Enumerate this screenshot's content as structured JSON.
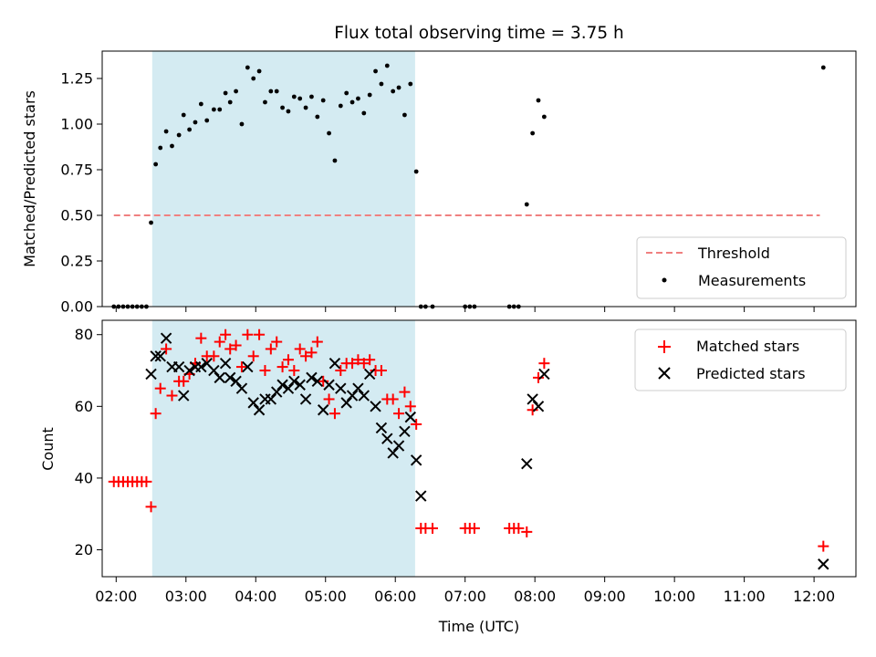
{
  "figure": {
    "background": "#ffffff"
  },
  "chart_data": [
    {
      "type": "scatter",
      "title": "Flux total observing time = 3.75 h",
      "xlabel": "",
      "ylabel": "Matched/Predicted stars",
      "xlim": [
        "01:48",
        "12:36"
      ],
      "ylim": [
        0,
        1.4
      ],
      "yticks": [
        0.0,
        0.25,
        0.5,
        0.75,
        1.0,
        1.25
      ],
      "ytick_labels": [
        "0.00",
        "0.25",
        "0.50",
        "0.75",
        "1.00",
        "1.25"
      ],
      "shaded_span": {
        "x": [
          "02:31",
          "06:17"
        ],
        "color": "#d4ebf2"
      },
      "legend": {
        "placement": "lower-right",
        "entries": [
          "Threshold",
          "Measurements"
        ]
      },
      "series": [
        {
          "name": "Threshold",
          "kind": "dashed-line",
          "color": "#f08080",
          "x": [
            "01:58",
            "12:05"
          ],
          "y": [
            0.5,
            0.5
          ]
        },
        {
          "name": "Measurements",
          "kind": "points",
          "color": "#000000",
          "x": [
            "01:58",
            "02:02",
            "02:06",
            "02:10",
            "02:14",
            "02:18",
            "02:22",
            "02:26",
            "02:30",
            "02:34",
            "02:38",
            "02:43",
            "02:48",
            "02:54",
            "02:58",
            "03:03",
            "03:08",
            "03:13",
            "03:18",
            "03:24",
            "03:29",
            "03:34",
            "03:38",
            "03:43",
            "03:48",
            "03:53",
            "03:58",
            "04:03",
            "04:08",
            "04:13",
            "04:18",
            "04:23",
            "04:28",
            "04:33",
            "04:38",
            "04:43",
            "04:48",
            "04:53",
            "04:58",
            "05:03",
            "05:08",
            "05:13",
            "05:18",
            "05:23",
            "05:28",
            "05:33",
            "05:38",
            "05:43",
            "05:48",
            "05:53",
            "05:58",
            "06:03",
            "06:08",
            "06:13",
            "06:18",
            "06:22",
            "06:26",
            "06:32",
            "07:00",
            "07:04",
            "07:08",
            "07:38",
            "07:42",
            "07:46",
            "07:53",
            "07:58",
            "08:03",
            "08:08",
            "12:08"
          ],
          "y": [
            0,
            0,
            0,
            0,
            0,
            0,
            0,
            0,
            0.46,
            0.78,
            0.87,
            0.96,
            0.88,
            0.94,
            1.05,
            0.97,
            1.01,
            1.11,
            1.02,
            1.08,
            1.08,
            1.17,
            1.12,
            1.18,
            1.0,
            1.31,
            1.25,
            1.29,
            1.12,
            1.18,
            1.18,
            1.09,
            1.07,
            1.15,
            1.14,
            1.09,
            1.15,
            1.04,
            1.13,
            0.95,
            0.8,
            1.1,
            1.17,
            1.12,
            1.14,
            1.06,
            1.16,
            1.29,
            1.22,
            1.32,
            1.18,
            1.2,
            1.05,
            1.22,
            0.74,
            0,
            0,
            0,
            0,
            0,
            0,
            0,
            0,
            0,
            0.56,
            0.95,
            1.13,
            1.04,
            1.31
          ]
        }
      ]
    },
    {
      "type": "scatter",
      "title": "",
      "xlabel": "Time (UTC)",
      "ylabel": "Count",
      "xlim": [
        "01:48",
        "12:36"
      ],
      "ylim": [
        12.5,
        84
      ],
      "yticks": [
        20,
        40,
        60,
        80
      ],
      "ytick_labels": [
        "20",
        "40",
        "60",
        "80"
      ],
      "xticks": [
        "02:00",
        "03:00",
        "04:00",
        "05:00",
        "06:00",
        "07:00",
        "08:00",
        "09:00",
        "10:00",
        "11:00",
        "12:00"
      ],
      "xtick_labels": [
        "02:00",
        "03:00",
        "04:00",
        "05:00",
        "06:00",
        "07:00",
        "08:00",
        "09:00",
        "10:00",
        "11:00",
        "12:00"
      ],
      "shaded_span": {
        "x": [
          "02:31",
          "06:17"
        ],
        "color": "#d4ebf2"
      },
      "legend": {
        "placement": "top-right",
        "entries": [
          "Matched stars",
          "Predicted stars"
        ]
      },
      "series": [
        {
          "name": "Matched stars",
          "kind": "plus",
          "color": "#ff0000",
          "x": [
            "01:58",
            "02:02",
            "02:06",
            "02:10",
            "02:14",
            "02:18",
            "02:22",
            "02:26",
            "02:30",
            "02:34",
            "02:38",
            "02:43",
            "02:48",
            "02:54",
            "02:58",
            "03:03",
            "03:08",
            "03:13",
            "03:18",
            "03:24",
            "03:29",
            "03:34",
            "03:38",
            "03:43",
            "03:48",
            "03:53",
            "03:58",
            "04:03",
            "04:08",
            "04:13",
            "04:18",
            "04:23",
            "04:28",
            "04:33",
            "04:38",
            "04:43",
            "04:48",
            "04:53",
            "04:58",
            "05:03",
            "05:08",
            "05:13",
            "05:18",
            "05:23",
            "05:28",
            "05:33",
            "05:38",
            "05:43",
            "05:48",
            "05:53",
            "05:58",
            "06:03",
            "06:08",
            "06:13",
            "06:18",
            "06:22",
            "06:26",
            "06:32",
            "07:00",
            "07:04",
            "07:08",
            "07:38",
            "07:42",
            "07:46",
            "07:53",
            "07:58",
            "08:03",
            "08:08",
            "12:08"
          ],
          "y": [
            39,
            39,
            39,
            39,
            39,
            39,
            39,
            39,
            32,
            58,
            65,
            76,
            63,
            67,
            67,
            69,
            72,
            79,
            74,
            74,
            78,
            80,
            76,
            77,
            71,
            80,
            74,
            80,
            70,
            76,
            78,
            71,
            73,
            70,
            76,
            74,
            75,
            78,
            67,
            62,
            58,
            70,
            72,
            72,
            73,
            72,
            73,
            70,
            70,
            62,
            62,
            58,
            64,
            60,
            55,
            26,
            26,
            26,
            26,
            26,
            26,
            26,
            26,
            26,
            25,
            59,
            68,
            72,
            21
          ]
        },
        {
          "name": "Predicted stars",
          "kind": "cross",
          "color": "#000000",
          "x": [
            "02:30",
            "02:34",
            "02:38",
            "02:43",
            "02:48",
            "02:54",
            "02:58",
            "03:03",
            "03:08",
            "03:13",
            "03:18",
            "03:24",
            "03:29",
            "03:34",
            "03:38",
            "03:43",
            "03:48",
            "03:53",
            "03:58",
            "04:03",
            "04:08",
            "04:13",
            "04:18",
            "04:23",
            "04:28",
            "04:33",
            "04:38",
            "04:43",
            "04:48",
            "04:53",
            "04:58",
            "05:03",
            "05:08",
            "05:13",
            "05:18",
            "05:23",
            "05:28",
            "05:33",
            "05:38",
            "05:43",
            "05:48",
            "05:53",
            "05:58",
            "06:03",
            "06:08",
            "06:13",
            "06:18",
            "07:53",
            "07:58",
            "08:03",
            "08:08",
            "12:08"
          ],
          "y": [
            69,
            74,
            74,
            79,
            71,
            71,
            63,
            70,
            71,
            71,
            72,
            70,
            68,
            72,
            68,
            67,
            65,
            71,
            61,
            59,
            62,
            62,
            64,
            66,
            65,
            67,
            66,
            62,
            68,
            67,
            59,
            66,
            72,
            65,
            61,
            63,
            65,
            63,
            69,
            60,
            54,
            51,
            47,
            49,
            53,
            57,
            45,
            44,
            62,
            60,
            69,
            16
          ]
        },
        {
          "name": "",
          "kind": "cross",
          "color": "#000000",
          "x": [
            "06:22"
          ],
          "y": [
            35
          ]
        }
      ]
    }
  ]
}
